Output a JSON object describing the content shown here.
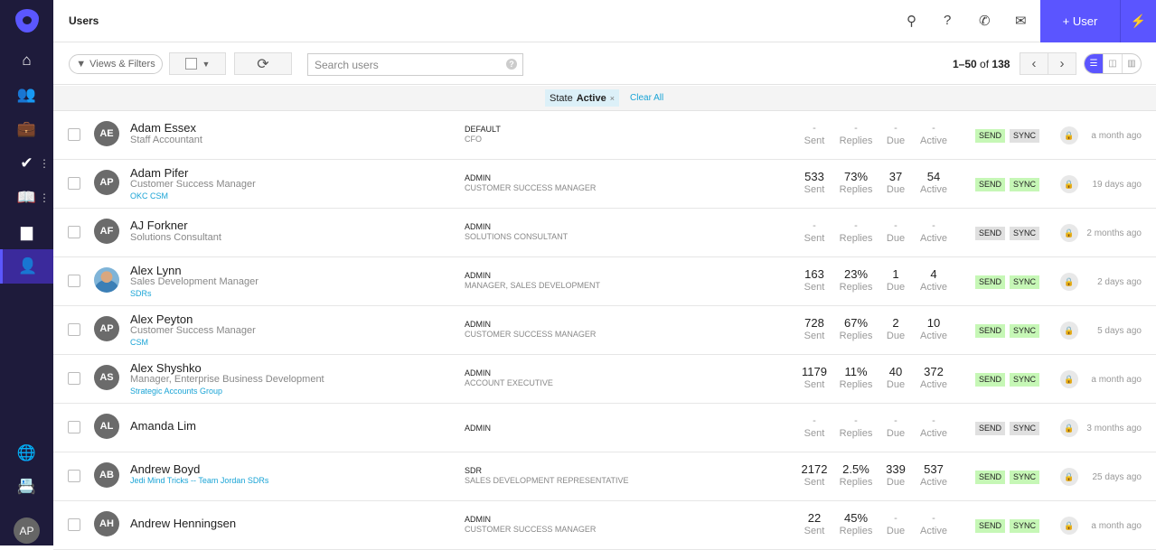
{
  "header": {
    "title": "Users",
    "add_user_label": "+ User",
    "icons": [
      "search-icon",
      "help-icon",
      "phone-icon",
      "mail-icon",
      "bolt-icon"
    ]
  },
  "sidebar": {
    "items": [
      "home",
      "people",
      "briefcase",
      "tasks",
      "library",
      "reports",
      "users"
    ],
    "active": "users",
    "bottom": [
      "globe",
      "contact-card"
    ],
    "avatar": "AP",
    "accent": "#5b57ff"
  },
  "toolbar": {
    "views_filters": "Views & Filters",
    "search_placeholder": "Search users",
    "search_value": "",
    "pagination": {
      "range": "1–50",
      "of": "of",
      "total": "138"
    }
  },
  "filter": {
    "label": "State",
    "value": "Active",
    "clear": "Clear All"
  },
  "stat_labels": [
    "Sent",
    "Replies",
    "Due",
    "Active"
  ],
  "badges": {
    "send": "SEND",
    "sync": "SYNC",
    "on_color": "#c6f7b6",
    "off_color": "#e0e0e0"
  },
  "users": [
    {
      "initials": "AE",
      "name": "Adam Essex",
      "title": "Staff Accountant",
      "tags": "",
      "role": "DEFAULT",
      "role_sub": "CFO",
      "stats": [
        "-",
        "-",
        "-",
        "-"
      ],
      "send": false,
      "sync": false,
      "send_on": true,
      "sync_on": false,
      "ago": "a month ago"
    },
    {
      "initials": "AP",
      "name": "Adam Pifer",
      "title": "Customer Success Manager",
      "tags": "OKC  CSM",
      "role": "ADMIN",
      "role_sub": "CUSTOMER SUCCESS MANAGER",
      "stats": [
        "533",
        "73%",
        "37",
        "54"
      ],
      "send_on": true,
      "sync_on": true,
      "ago": "19 days ago"
    },
    {
      "initials": "AF",
      "name": "AJ Forkner",
      "title": "Solutions Consultant",
      "tags": "",
      "role": "ADMIN",
      "role_sub": "SOLUTIONS CONSULTANT",
      "stats": [
        "-",
        "-",
        "-",
        "-"
      ],
      "send_on": false,
      "sync_on": false,
      "ago": "2 months ago"
    },
    {
      "initials": "",
      "photo": true,
      "name": "Alex Lynn",
      "title": "Sales Development Manager",
      "tags": "SDRs",
      "role": "ADMIN",
      "role_sub": "MANAGER, SALES DEVELOPMENT",
      "stats": [
        "163",
        "23%",
        "1",
        "4"
      ],
      "send_on": true,
      "sync_on": true,
      "ago": "2 days ago"
    },
    {
      "initials": "AP",
      "name": "Alex Peyton",
      "title": "Customer Success Manager",
      "tags": "CSM",
      "role": "ADMIN",
      "role_sub": "CUSTOMER SUCCESS MANAGER",
      "stats": [
        "728",
        "67%",
        "2",
        "10"
      ],
      "send_on": true,
      "sync_on": true,
      "ago": "5 days ago"
    },
    {
      "initials": "AS",
      "name": "Alex Shyshko",
      "title": "Manager, Enterprise Business Development",
      "tags": "Strategic Accounts Group",
      "role": "ADMIN",
      "role_sub": "ACCOUNT EXECUTIVE",
      "stats": [
        "1179",
        "11%",
        "40",
        "372"
      ],
      "send_on": true,
      "sync_on": true,
      "ago": "a month ago"
    },
    {
      "initials": "AL",
      "name": "Amanda Lim",
      "title": "",
      "tags": "",
      "role": "ADMIN",
      "role_sub": "",
      "stats": [
        "-",
        "-",
        "-",
        "-"
      ],
      "send_on": false,
      "sync_on": false,
      "ago": "3 months ago"
    },
    {
      "initials": "AB",
      "name": "Andrew Boyd",
      "title": "",
      "tags": "Jedi Mind Tricks -- Team Jordan  SDRs",
      "role": "SDR",
      "role_sub": "SALES DEVELOPMENT REPRESENTATIVE",
      "stats": [
        "2172",
        "2.5%",
        "339",
        "537"
      ],
      "send_on": true,
      "sync_on": true,
      "ago": "25 days ago"
    },
    {
      "initials": "AH",
      "name": "Andrew Henningsen",
      "title": "",
      "tags": "",
      "role": "ADMIN",
      "role_sub": "CUSTOMER SUCCESS MANAGER",
      "stats": [
        "22",
        "45%",
        "-",
        "-"
      ],
      "send_on": true,
      "sync_on": true,
      "ago": "a month ago"
    }
  ]
}
